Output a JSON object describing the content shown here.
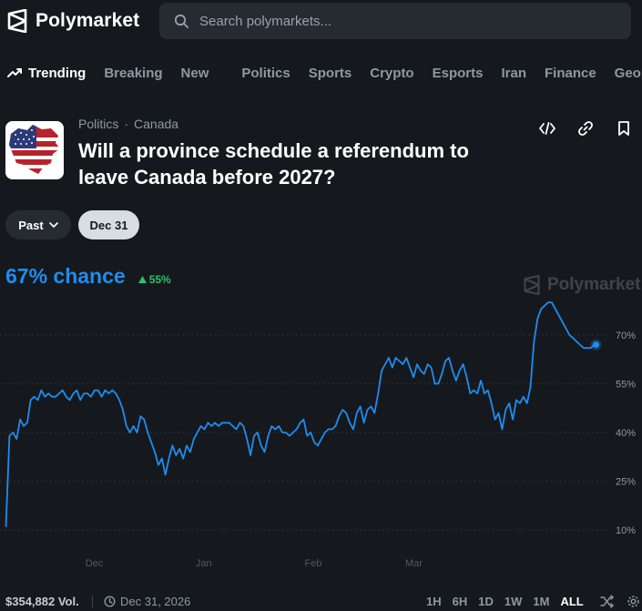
{
  "header": {
    "brand": "Polymarket",
    "search_placeholder": "Search polymarkets..."
  },
  "nav": {
    "trending": "Trending",
    "items": [
      "Breaking",
      "New",
      "Politics",
      "Sports",
      "Crypto",
      "Esports",
      "Iran",
      "Finance",
      "Geopolit"
    ]
  },
  "market": {
    "category": "Politics",
    "subcategory": "Canada",
    "title": "Will a province schedule a referendum to leave Canada before 2027?",
    "past_label": "Past",
    "date_pill": "Dec 31"
  },
  "chance": {
    "value": "67% chance",
    "delta": "55%"
  },
  "watermark": "Polymarket",
  "chart_data": {
    "type": "line",
    "title": "",
    "xlabel": "",
    "ylabel": "",
    "x_ticks": [
      "Dec",
      "Jan",
      "Feb",
      "Mar"
    ],
    "y_ticks": [
      "10%",
      "25%",
      "40%",
      "55%",
      "70%"
    ],
    "ylim": [
      5,
      75
    ],
    "grid": "horizontal-dashed",
    "color": "#1f8cf0",
    "series": [
      {
        "values": [
          11,
          39,
          40,
          38,
          44,
          42,
          43,
          50,
          51,
          50,
          53,
          51,
          52,
          51,
          51,
          52,
          53,
          51,
          50,
          52,
          53,
          50,
          52,
          52,
          51,
          53,
          53,
          51,
          53,
          52,
          53,
          52,
          50,
          47,
          42,
          40,
          42,
          40,
          45,
          44,
          40,
          37,
          34,
          30,
          32,
          27,
          32,
          36,
          33,
          35,
          32,
          36,
          34,
          38,
          40,
          42,
          41,
          43,
          42,
          43,
          42,
          43,
          43,
          43,
          42,
          41,
          43,
          42,
          38,
          33,
          39,
          40,
          36,
          34,
          39,
          42,
          41,
          42,
          40,
          40,
          39,
          40,
          41,
          43,
          44,
          39,
          40,
          37,
          36,
          38,
          40,
          41,
          41,
          42,
          45,
          47,
          46,
          43,
          41,
          46,
          48,
          43,
          47,
          48,
          46,
          52,
          59,
          61,
          63,
          60,
          63,
          62,
          61,
          63,
          60,
          57,
          61,
          59,
          58,
          61,
          60,
          55,
          55,
          58,
          62,
          63,
          59,
          56,
          59,
          61,
          57,
          52,
          53,
          52,
          56,
          52,
          53,
          49,
          44,
          46,
          41,
          47,
          49,
          44,
          50,
          49,
          51,
          49,
          54,
          68,
          75,
          78,
          79,
          80,
          80,
          78,
          76,
          74,
          72,
          70,
          69,
          68,
          67,
          66,
          66,
          66,
          67,
          67
        ]
      }
    ]
  },
  "footer": {
    "volume": "$354,882 Vol.",
    "end_date": "Dec 31, 2026",
    "ranges": [
      "1H",
      "6H",
      "1D",
      "1W",
      "1M",
      "ALL"
    ],
    "active_range": "ALL"
  },
  "colors": {
    "background": "#15191d",
    "accent": "#1f8cf0",
    "positive": "#2ebd6e",
    "muted": "#8d98a3"
  },
  "icons": [
    "polymarket-logo-icon",
    "search-icon",
    "trending-icon",
    "embed-icon",
    "link-icon",
    "bookmark-icon",
    "chevron-down-icon",
    "triangle-up-icon",
    "clock-icon",
    "shuffle-icon",
    "gear-icon"
  ]
}
